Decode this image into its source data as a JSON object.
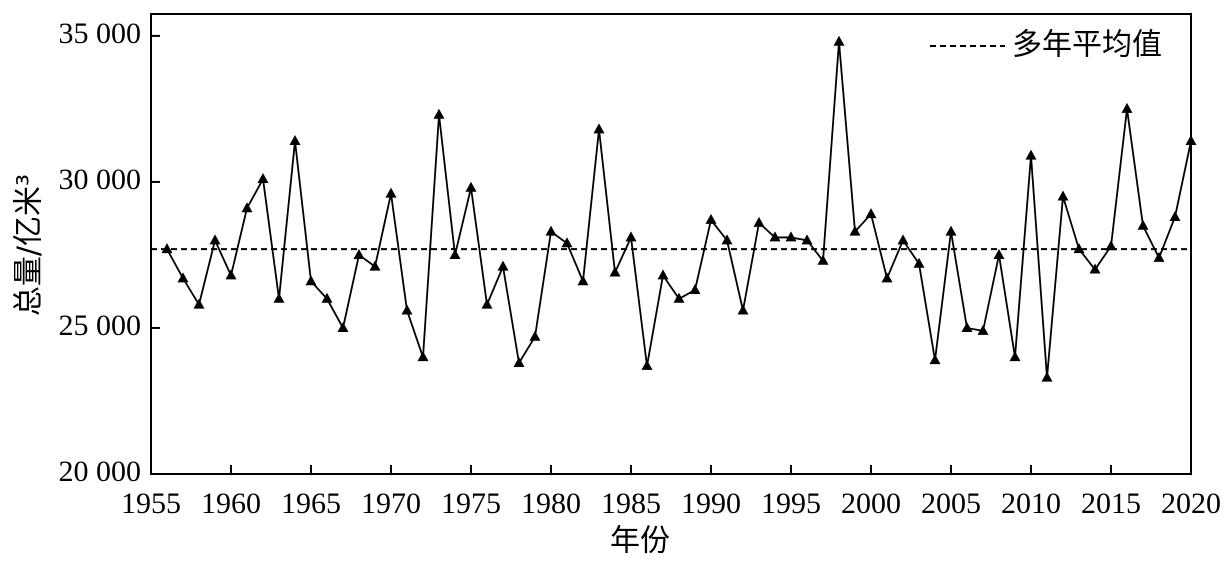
{
  "chart_data": {
    "type": "line",
    "x": [
      1956,
      1957,
      1958,
      1959,
      1960,
      1961,
      1962,
      1963,
      1964,
      1965,
      1966,
      1967,
      1968,
      1969,
      1970,
      1971,
      1972,
      1973,
      1974,
      1975,
      1976,
      1977,
      1978,
      1979,
      1980,
      1981,
      1982,
      1983,
      1984,
      1985,
      1986,
      1987,
      1988,
      1989,
      1990,
      1991,
      1992,
      1993,
      1994,
      1995,
      1996,
      1997,
      1998,
      1999,
      2000,
      2001,
      2002,
      2003,
      2004,
      2005,
      2006,
      2007,
      2008,
      2009,
      2010,
      2011,
      2012,
      2013,
      2014,
      2015,
      2016,
      2017,
      2018,
      2019,
      2020
    ],
    "values": [
      27700,
      26700,
      25800,
      28000,
      26800,
      29100,
      30100,
      26000,
      31400,
      26600,
      26000,
      25000,
      27500,
      27100,
      29600,
      25600,
      24000,
      32300,
      27500,
      29800,
      25800,
      27100,
      23800,
      24700,
      28300,
      27900,
      26600,
      31800,
      26900,
      28100,
      23700,
      26800,
      26000,
      26300,
      28700,
      28000,
      25600,
      28600,
      28100,
      28100,
      28000,
      27300,
      34800,
      28300,
      28900,
      26700,
      28000,
      27200,
      23900,
      28300,
      25000,
      24900,
      27500,
      24000,
      30900,
      23300,
      29500,
      27700,
      27000,
      27800,
      32500,
      28500,
      27400,
      28800,
      31400
    ],
    "color": "#000000",
    "mean": {
      "name": "多年平均值",
      "value": 27700
    },
    "xlabel": "年份",
    "ylabel": "总量/亿米³",
    "xlim": [
      1955,
      2020
    ],
    "xticks": [
      1955,
      1960,
      1965,
      1970,
      1975,
      1980,
      1985,
      1990,
      1995,
      2000,
      2005,
      2010,
      2015,
      2020
    ],
    "ylim": [
      20000,
      35750
    ],
    "yticks": [
      {
        "value": 20000,
        "label": "20 000"
      },
      {
        "value": 25000,
        "label": "25 000"
      },
      {
        "value": 30000,
        "label": "30 000"
      },
      {
        "value": 35000,
        "label": "35 000"
      }
    ],
    "legend": "upper right"
  }
}
